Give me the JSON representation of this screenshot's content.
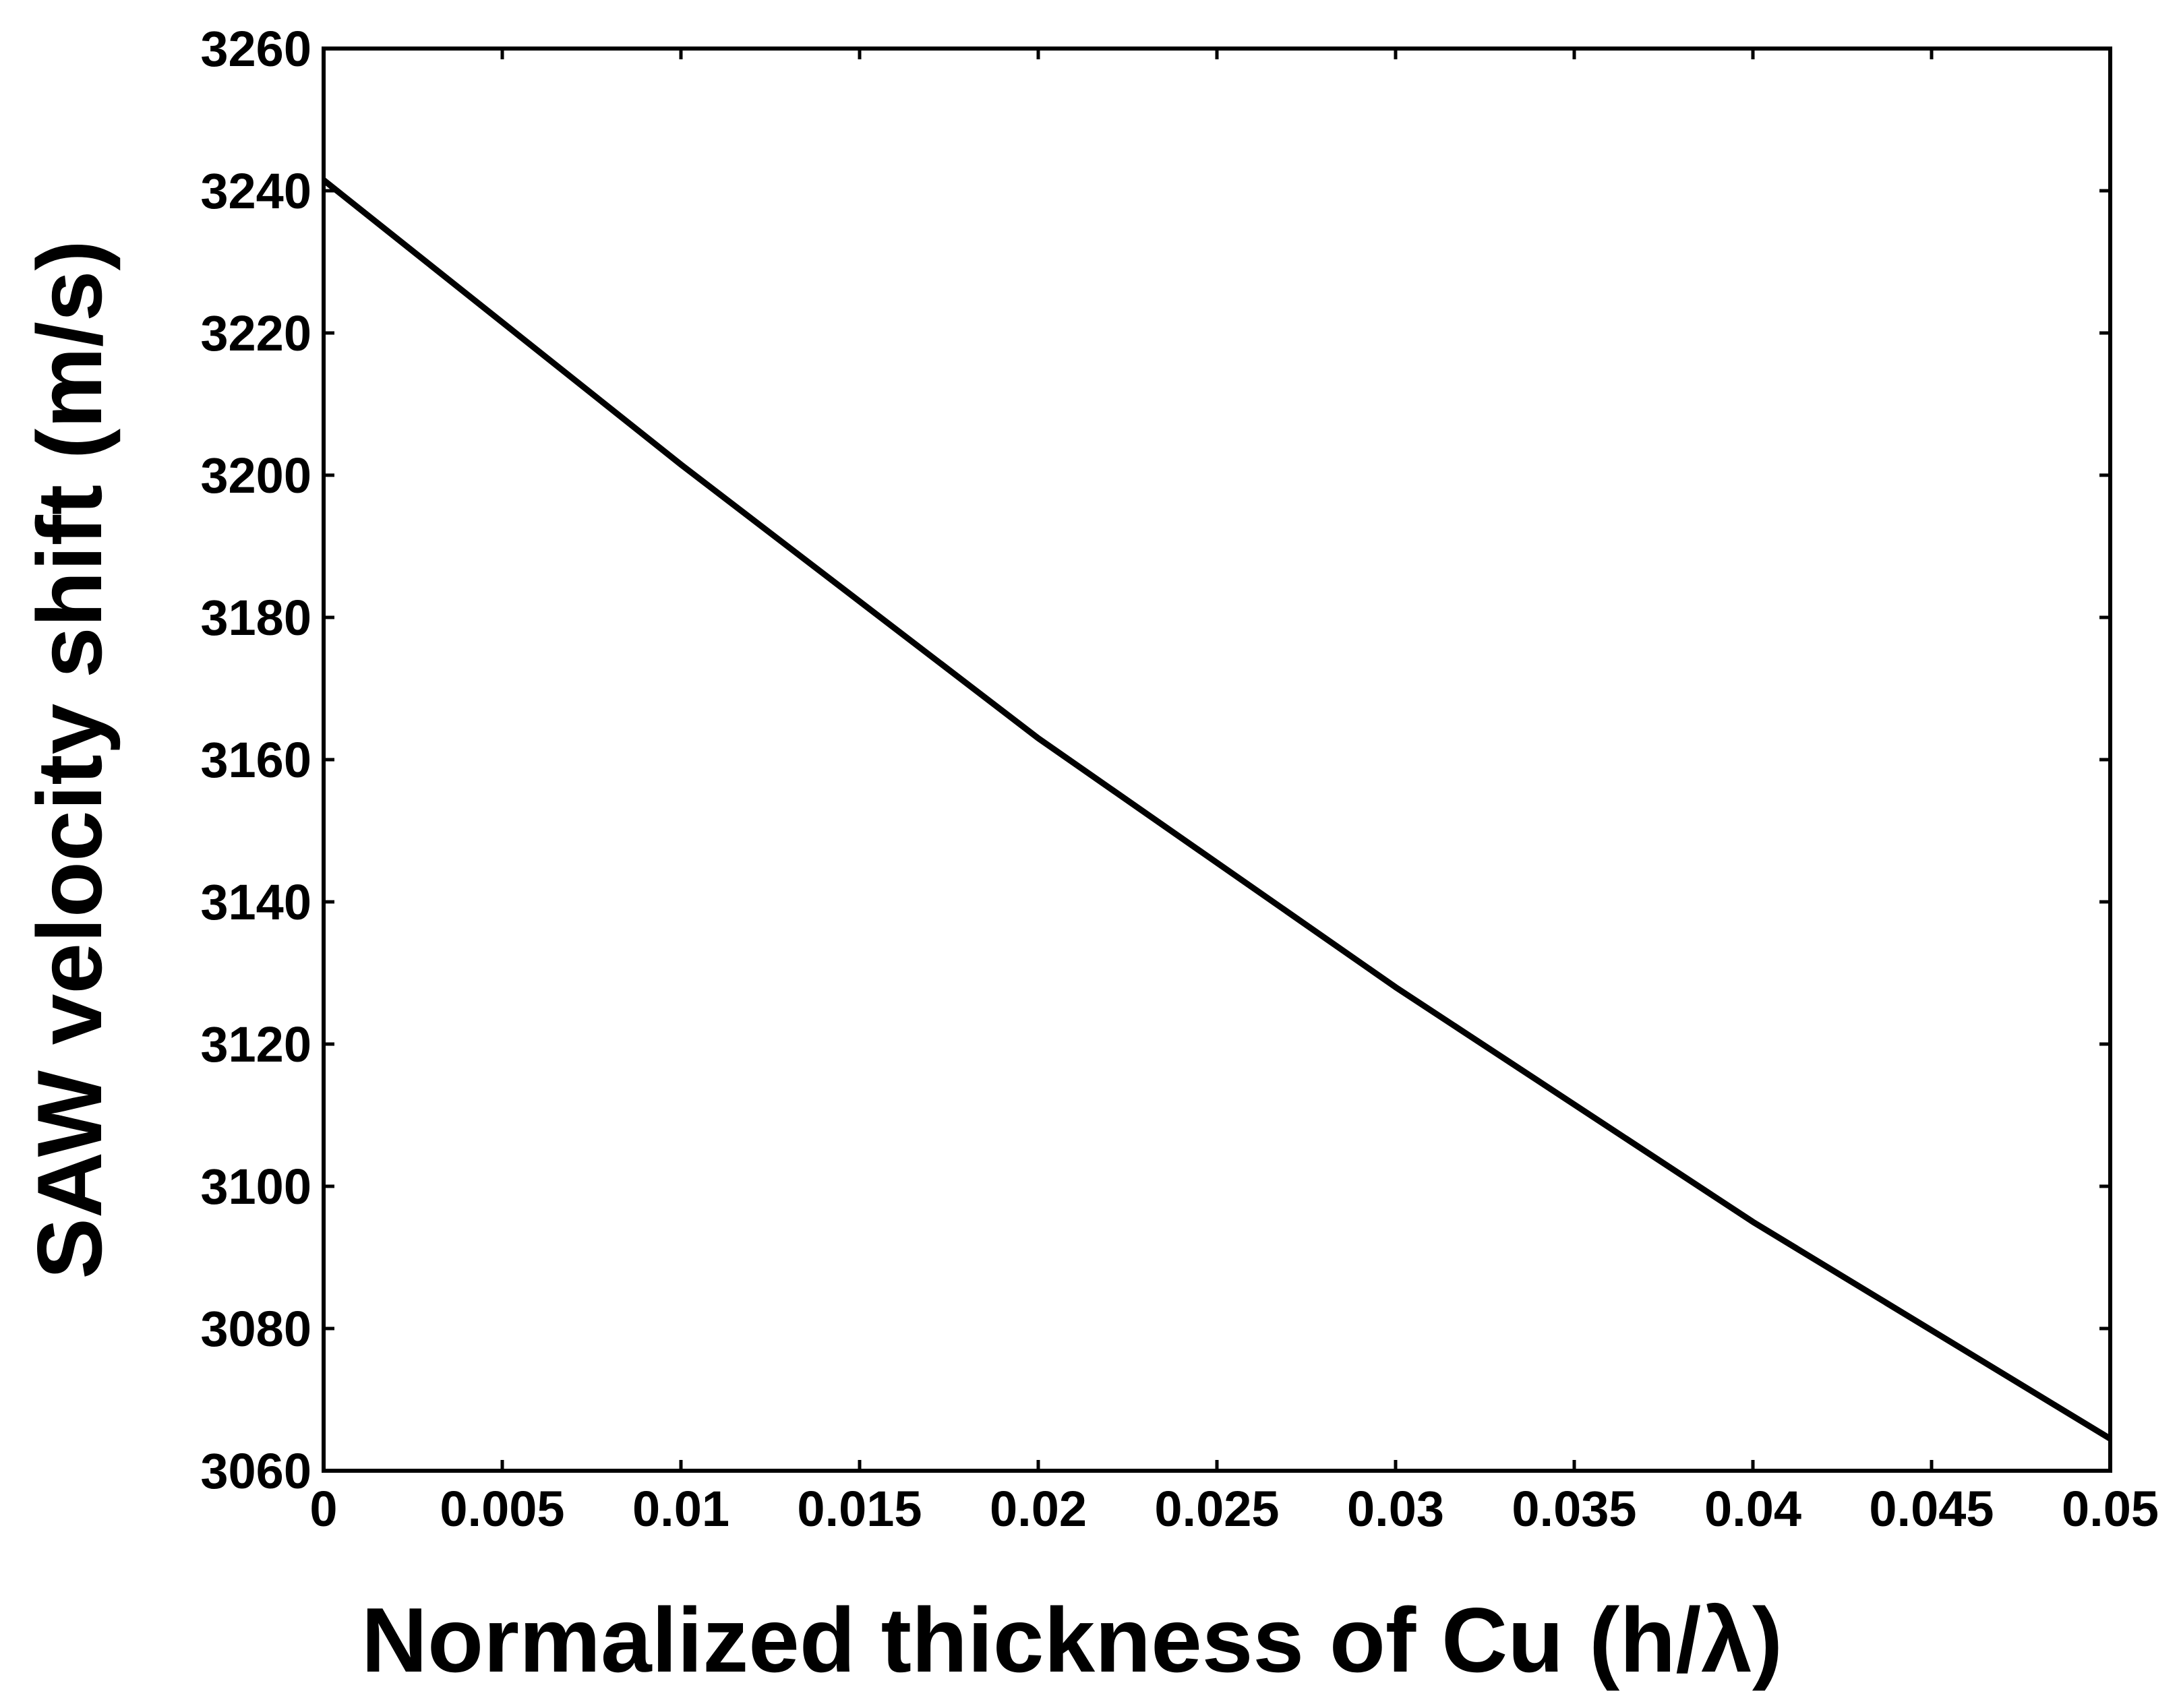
{
  "chart_data": {
    "type": "line",
    "title": "",
    "xlabel": "Normalized thickness of Cu (h/λ)",
    "ylabel": "SAW velocity shift (m/s)",
    "xlim": [
      0,
      0.05
    ],
    "ylim": [
      3060,
      3260
    ],
    "grid": false,
    "x_ticks": [
      0,
      0.005,
      0.01,
      0.015,
      0.02,
      0.025,
      0.03,
      0.035,
      0.04,
      0.045,
      0.05
    ],
    "x_tick_labels": [
      "0",
      "0.005",
      "0.01",
      "0.015",
      "0.02",
      "0.025",
      "0.03",
      "0.035",
      "0.04",
      "0.045",
      "0.05"
    ],
    "y_ticks": [
      3060,
      3080,
      3100,
      3120,
      3140,
      3160,
      3180,
      3200,
      3220,
      3240,
      3260
    ],
    "y_tick_labels": [
      "3060",
      "3080",
      "3100",
      "3120",
      "3140",
      "3160",
      "3180",
      "3200",
      "3220",
      "3240",
      "3260"
    ],
    "series": [
      {
        "name": "SAW velocity",
        "color": "#000000",
        "x": [
          0,
          0.01,
          0.02,
          0.03,
          0.04,
          0.05
        ],
        "values": [
          3241.5,
          3201.5,
          3163,
          3128,
          3095,
          3064.5
        ]
      }
    ]
  }
}
